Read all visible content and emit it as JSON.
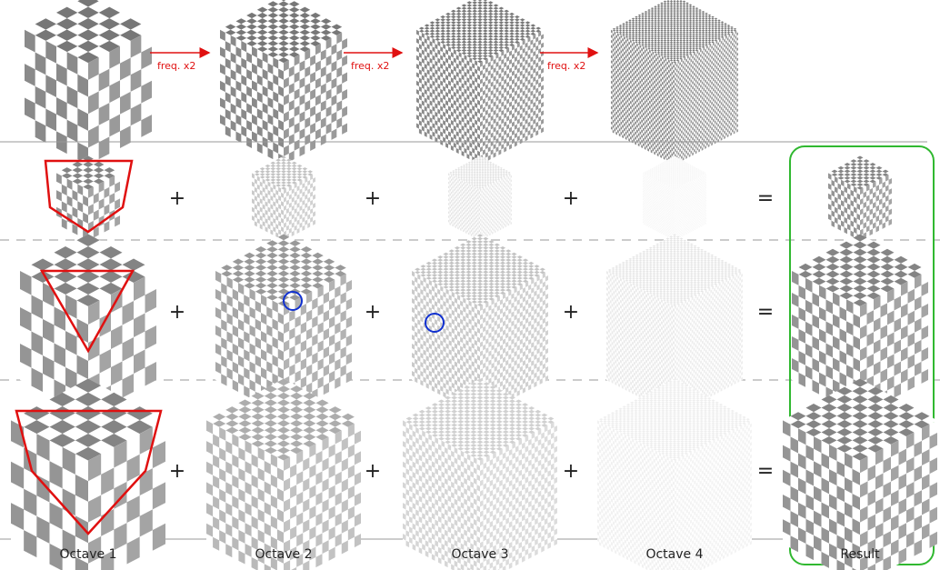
{
  "top_row": {
    "arrow_labels": [
      "freq. x2",
      "freq. x2",
      "freq. x2"
    ]
  },
  "operators": {
    "plus": "+",
    "equals": "="
  },
  "column_labels": [
    "Octave 1",
    "Octave 2",
    "Octave 3",
    "Octave 4",
    "Result"
  ],
  "colors": {
    "dark_square": "#888888",
    "light_square": "#ffffff",
    "highlight_outline": "#e01010",
    "marker_circle": "#1030d0",
    "arrow": "#e01010",
    "result_box": "#30b830",
    "separator": "#999999",
    "dashed_separator": "#bbbbbb"
  },
  "levels": {
    "cube_top_row": [
      1,
      2,
      3,
      4
    ],
    "octave_rows": [
      [
        0.9,
        0.45,
        0.22,
        0.08
      ],
      [
        0.9,
        0.75,
        0.45,
        0.18
      ],
      [
        0.9,
        0.6,
        0.35,
        0.12
      ]
    ]
  }
}
